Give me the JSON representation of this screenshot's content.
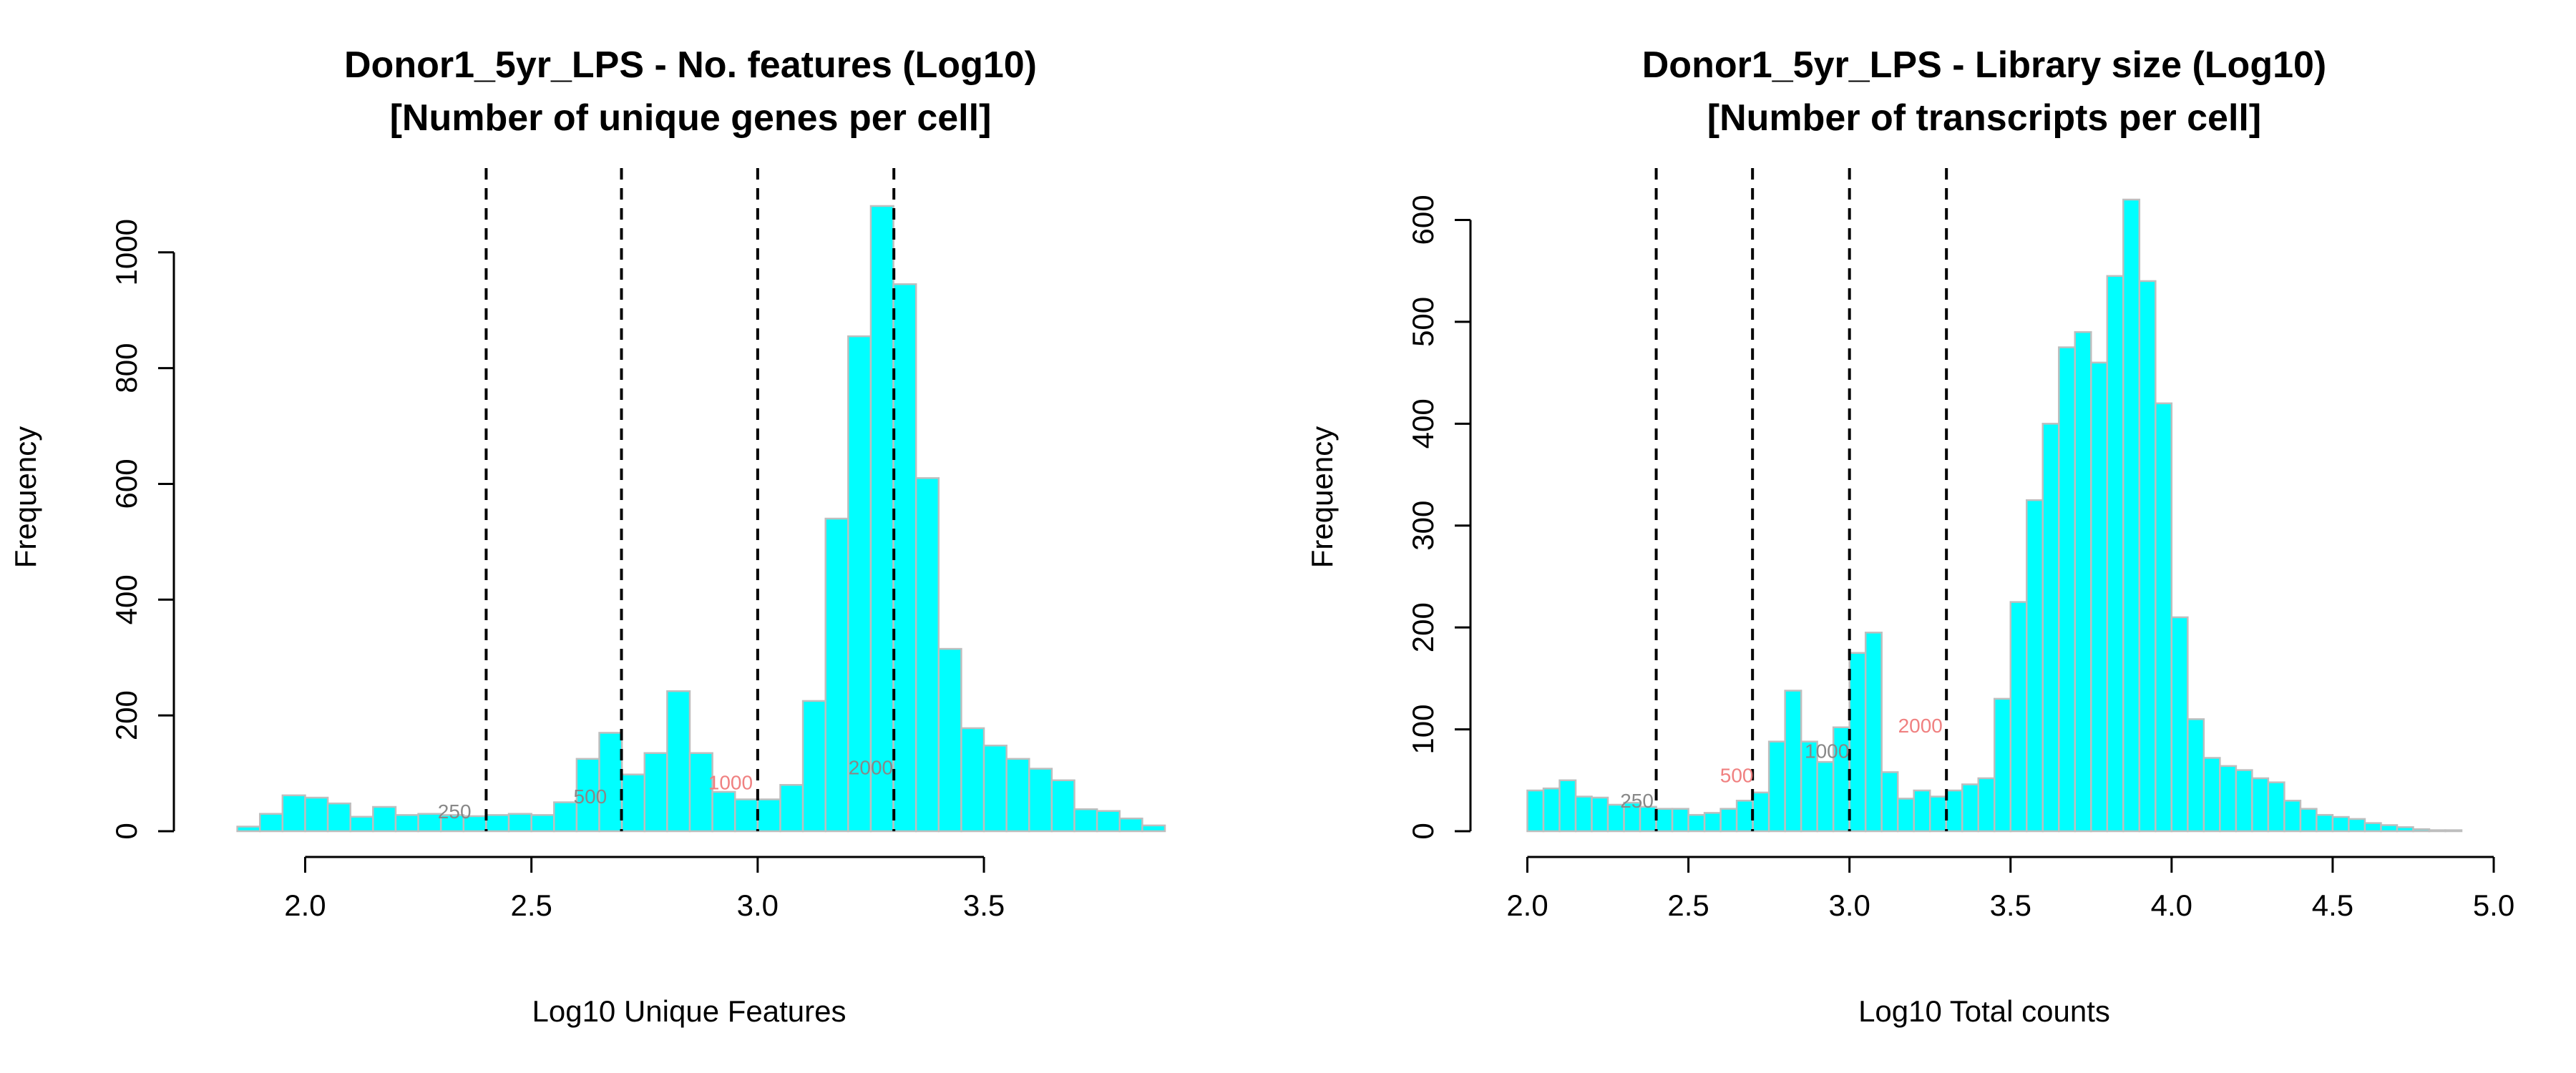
{
  "chart_data": [
    {
      "type": "histogram",
      "title": [
        "Donor1_5yr_LPS - No. features (Log10)",
        "[Number of unique genes per cell]"
      ],
      "xlabel": "Log10 Unique Features",
      "ylabel": "Frequency",
      "xlim": [
        1.8,
        3.9
      ],
      "ylim": [
        0,
        1080
      ],
      "x_ticks": [
        2.0,
        2.5,
        3.0,
        3.5
      ],
      "x_tick_labels": [
        "2.0",
        "2.5",
        "3.0",
        "3.5"
      ],
      "y_ticks": [
        0,
        200,
        400,
        600,
        800,
        1000
      ],
      "y_tick_labels": [
        "0",
        "200",
        "400",
        "600",
        "800",
        "1000"
      ],
      "bin_start": 1.8,
      "bin_width": 0.05,
      "counts": [
        0,
        8,
        30,
        62,
        58,
        48,
        25,
        42,
        28,
        30,
        28,
        26,
        28,
        30,
        28,
        50,
        125,
        170,
        98,
        135,
        242,
        135,
        68,
        55,
        55,
        80,
        225,
        540,
        855,
        1080,
        945,
        610,
        315,
        178,
        148,
        125,
        108,
        88,
        38,
        35,
        22,
        10
      ],
      "bar_color": "#00ffff",
      "bar_border": "#bebebe",
      "vlines": [
        2.4,
        2.699,
        3.0,
        3.301
      ],
      "annotations": [
        {
          "text": "250",
          "x": 2.33,
          "y": 22,
          "color": "#888888"
        },
        {
          "text": "500",
          "x": 2.63,
          "y": 48,
          "color": "#888888"
        },
        {
          "text": "1000",
          "x": 2.94,
          "y": 72,
          "color": "#f08080"
        },
        {
          "text": "2000",
          "x": 3.25,
          "y": 98,
          "color": "#888888"
        }
      ]
    },
    {
      "type": "histogram",
      "title": [
        "Donor1_5yr_LPS - Library size (Log10)",
        "[Number of transcripts per cell]"
      ],
      "xlabel": "Log10 Total counts",
      "ylabel": "Frequency",
      "xlim": [
        1.95,
        4.9
      ],
      "ylim": [
        0,
        620
      ],
      "x_ticks": [
        2.0,
        2.5,
        3.0,
        3.5,
        4.0,
        4.5,
        5.0
      ],
      "x_tick_labels": [
        "2.0",
        "2.5",
        "3.0",
        "3.5",
        "4.0",
        "4.5",
        "5.0"
      ],
      "y_ticks": [
        0,
        100,
        200,
        300,
        400,
        500,
        600
      ],
      "y_tick_labels": [
        "0",
        "100",
        "200",
        "300",
        "400",
        "500",
        "600"
      ],
      "bin_start": 1.95,
      "bin_width": 0.05,
      "counts": [
        0,
        40,
        42,
        50,
        34,
        33,
        26,
        28,
        24,
        22,
        22,
        16,
        18,
        22,
        30,
        38,
        88,
        138,
        88,
        68,
        102,
        175,
        195,
        58,
        32,
        40,
        34,
        40,
        46,
        52,
        130,
        225,
        325,
        400,
        475,
        490,
        460,
        545,
        620,
        540,
        420,
        210,
        110,
        72,
        64,
        60,
        52,
        48,
        30,
        22,
        16,
        14,
        12,
        8,
        6,
        4,
        2,
        1,
        1
      ],
      "bar_color": "#00ffff",
      "bar_border": "#bebebe",
      "vlines": [
        2.4,
        2.699,
        3.0,
        3.301
      ],
      "annotations": [
        {
          "text": "250",
          "x": 2.34,
          "y": 23,
          "color": "#888888"
        },
        {
          "text": "500",
          "x": 2.65,
          "y": 48,
          "color": "#f08080"
        },
        {
          "text": "1000",
          "x": 2.93,
          "y": 72,
          "color": "#888888"
        },
        {
          "text": "2000",
          "x": 3.22,
          "y": 97,
          "color": "#f08080"
        }
      ]
    }
  ]
}
